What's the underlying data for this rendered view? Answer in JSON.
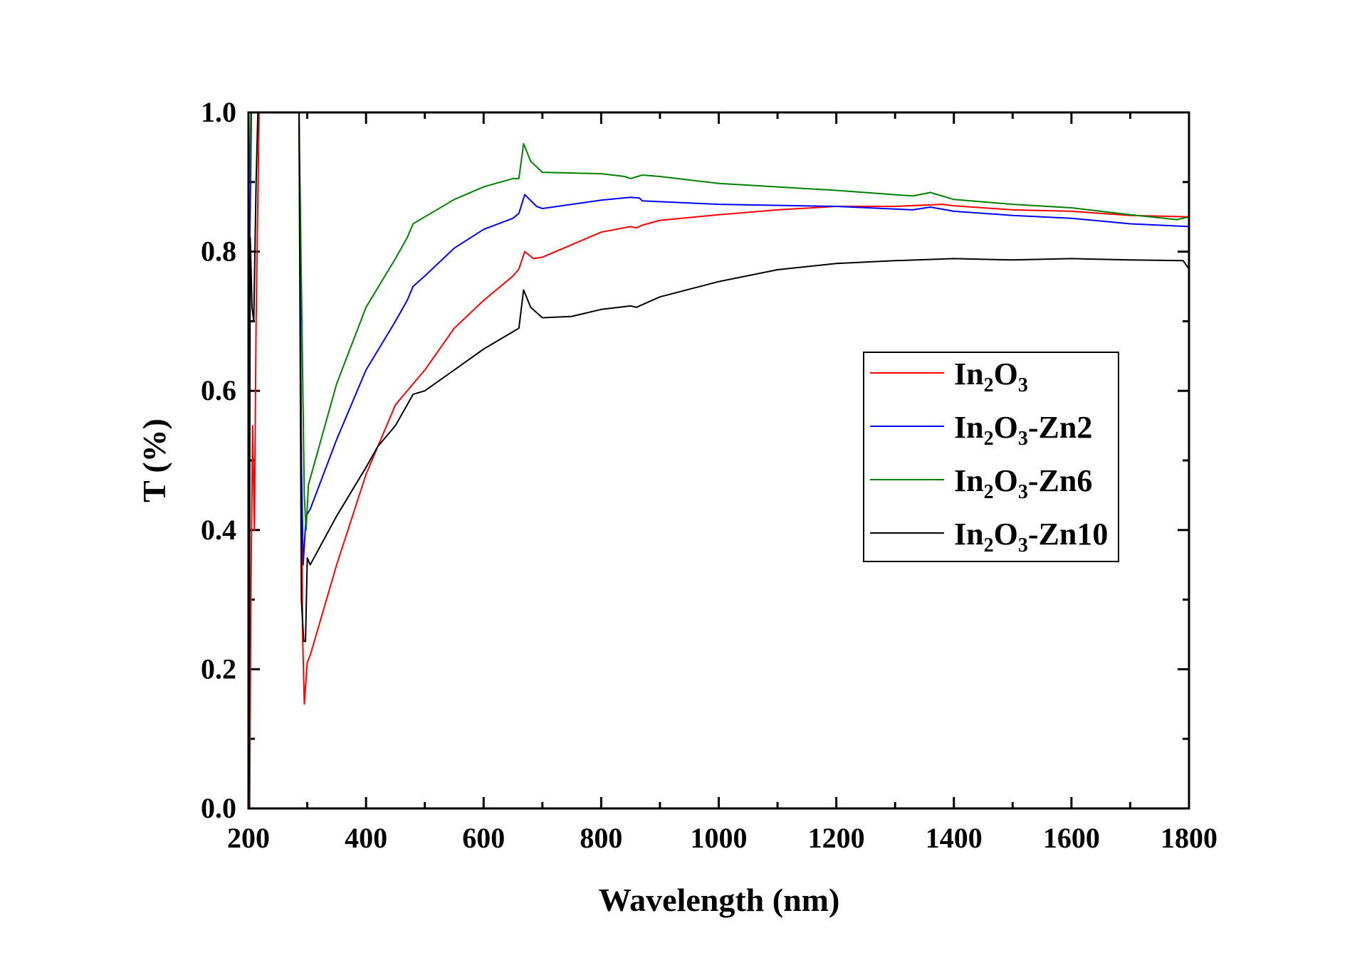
{
  "chart_data": {
    "type": "line",
    "title": "",
    "xlabel": "Wavelength (nm)",
    "ylabel": "T (%)",
    "xlim": [
      200,
      1800
    ],
    "ylim": [
      0.0,
      1.0
    ],
    "x_ticks": [
      "200",
      "400",
      "600",
      "800",
      "1000",
      "1200",
      "1400",
      "1600",
      "1800"
    ],
    "y_ticks": [
      "0.0",
      "0.2",
      "0.4",
      "0.6",
      "0.8",
      "1.0"
    ],
    "grid": false,
    "legend_position": "center-right",
    "series": [
      {
        "name": "In2O3",
        "color": "#ff0000",
        "points": [
          [
            202,
            0
          ],
          [
            204,
            0.3
          ],
          [
            207,
            0.55
          ],
          [
            210,
            0.4
          ],
          [
            213,
            0.7
          ],
          [
            218,
            1.0
          ],
          [
            286,
            1.0
          ],
          [
            292,
            0.25
          ],
          [
            295,
            0.15
          ],
          [
            300,
            0.21
          ],
          [
            305,
            0.22
          ],
          [
            350,
            0.35
          ],
          [
            400,
            0.48
          ],
          [
            450,
            0.58
          ],
          [
            480,
            0.61
          ],
          [
            500,
            0.63
          ],
          [
            550,
            0.69
          ],
          [
            600,
            0.73
          ],
          [
            650,
            0.765
          ],
          [
            660,
            0.775
          ],
          [
            670,
            0.8
          ],
          [
            685,
            0.79
          ],
          [
            700,
            0.792
          ],
          [
            750,
            0.81
          ],
          [
            800,
            0.828
          ],
          [
            850,
            0.836
          ],
          [
            860,
            0.834
          ],
          [
            870,
            0.838
          ],
          [
            900,
            0.845
          ],
          [
            1000,
            0.853
          ],
          [
            1100,
            0.86
          ],
          [
            1200,
            0.865
          ],
          [
            1300,
            0.865
          ],
          [
            1380,
            0.868
          ],
          [
            1400,
            0.866
          ],
          [
            1500,
            0.86
          ],
          [
            1600,
            0.858
          ],
          [
            1700,
            0.852
          ],
          [
            1800,
            0.85
          ]
        ]
      },
      {
        "name": "In2O3-Zn2",
        "color": "#0000ff",
        "points": [
          [
            202,
            0.8
          ],
          [
            205,
            1.0
          ],
          [
            286,
            1.0
          ],
          [
            290,
            0.5
          ],
          [
            293,
            0.35
          ],
          [
            298,
            0.42
          ],
          [
            305,
            0.43
          ],
          [
            350,
            0.53
          ],
          [
            400,
            0.63
          ],
          [
            450,
            0.7
          ],
          [
            470,
            0.73
          ],
          [
            480,
            0.75
          ],
          [
            500,
            0.765
          ],
          [
            550,
            0.805
          ],
          [
            600,
            0.832
          ],
          [
            650,
            0.848
          ],
          [
            660,
            0.855
          ],
          [
            670,
            0.882
          ],
          [
            690,
            0.865
          ],
          [
            700,
            0.862
          ],
          [
            800,
            0.874
          ],
          [
            850,
            0.878
          ],
          [
            865,
            0.877
          ],
          [
            870,
            0.873
          ],
          [
            1000,
            0.868
          ],
          [
            1200,
            0.865
          ],
          [
            1330,
            0.86
          ],
          [
            1360,
            0.864
          ],
          [
            1400,
            0.858
          ],
          [
            1500,
            0.852
          ],
          [
            1600,
            0.848
          ],
          [
            1700,
            0.84
          ],
          [
            1800,
            0.836
          ]
        ]
      },
      {
        "name": "In2O3-Zn6",
        "color": "#008000",
        "points": [
          [
            202,
            0.9
          ],
          [
            204,
            1.0
          ],
          [
            286,
            1.0
          ],
          [
            295,
            0.45
          ],
          [
            298,
            0.4
          ],
          [
            302,
            0.465
          ],
          [
            350,
            0.61
          ],
          [
            400,
            0.72
          ],
          [
            450,
            0.79
          ],
          [
            470,
            0.82
          ],
          [
            480,
            0.84
          ],
          [
            500,
            0.85
          ],
          [
            550,
            0.875
          ],
          [
            600,
            0.893
          ],
          [
            650,
            0.905
          ],
          [
            660,
            0.905
          ],
          [
            668,
            0.955
          ],
          [
            680,
            0.93
          ],
          [
            700,
            0.914
          ],
          [
            800,
            0.912
          ],
          [
            840,
            0.908
          ],
          [
            850,
            0.905
          ],
          [
            870,
            0.91
          ],
          [
            900,
            0.908
          ],
          [
            1000,
            0.898
          ],
          [
            1200,
            0.888
          ],
          [
            1330,
            0.88
          ],
          [
            1360,
            0.885
          ],
          [
            1400,
            0.875
          ],
          [
            1500,
            0.868
          ],
          [
            1600,
            0.863
          ],
          [
            1700,
            0.853
          ],
          [
            1780,
            0.846
          ],
          [
            1800,
            0.85
          ]
        ]
      },
      {
        "name": "In2O3-Zn10",
        "color": "#000000",
        "points": [
          [
            201,
            0.0
          ],
          [
            203,
            0.82
          ],
          [
            206,
            0.72
          ],
          [
            209,
            0.7
          ],
          [
            213,
            0.9
          ],
          [
            216,
            1.0
          ],
          [
            286,
            1.0
          ],
          [
            290,
            0.3
          ],
          [
            294,
            0.24
          ],
          [
            297,
            0.24
          ],
          [
            300,
            0.36
          ],
          [
            305,
            0.35
          ],
          [
            350,
            0.42
          ],
          [
            400,
            0.49
          ],
          [
            420,
            0.52
          ],
          [
            450,
            0.55
          ],
          [
            480,
            0.595
          ],
          [
            500,
            0.6
          ],
          [
            550,
            0.63
          ],
          [
            600,
            0.66
          ],
          [
            650,
            0.685
          ],
          [
            660,
            0.69
          ],
          [
            668,
            0.745
          ],
          [
            680,
            0.72
          ],
          [
            700,
            0.705
          ],
          [
            750,
            0.707
          ],
          [
            800,
            0.717
          ],
          [
            850,
            0.722
          ],
          [
            860,
            0.72
          ],
          [
            900,
            0.735
          ],
          [
            1000,
            0.757
          ],
          [
            1100,
            0.774
          ],
          [
            1200,
            0.783
          ],
          [
            1300,
            0.787
          ],
          [
            1400,
            0.79
          ],
          [
            1500,
            0.788
          ],
          [
            1600,
            0.79
          ],
          [
            1700,
            0.788
          ],
          [
            1790,
            0.787
          ],
          [
            1800,
            0.775
          ]
        ]
      }
    ]
  }
}
